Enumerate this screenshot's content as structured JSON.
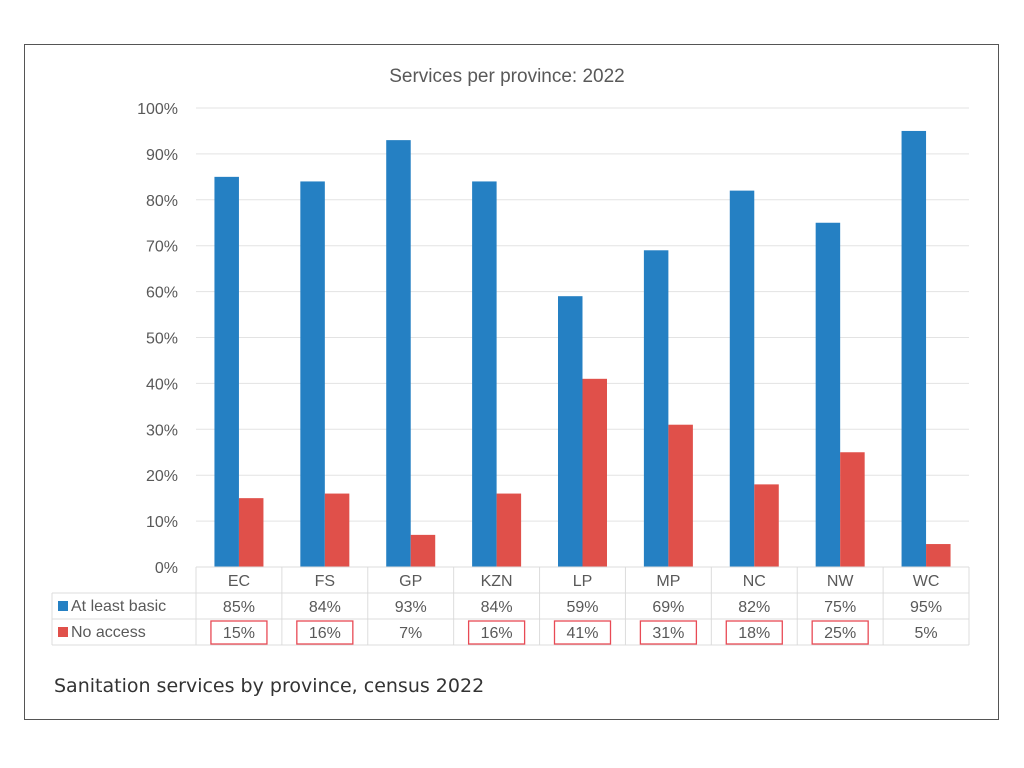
{
  "chart_data": {
    "type": "bar",
    "title": "Services per province: 2022",
    "xlabel": "",
    "ylabel": "",
    "ylim": [
      0,
      100
    ],
    "yticks": [
      "0%",
      "10%",
      "20%",
      "30%",
      "40%",
      "50%",
      "60%",
      "70%",
      "80%",
      "90%",
      "100%"
    ],
    "grid": true,
    "categories": [
      "EC",
      "FS",
      "GP",
      "KZN",
      "LP",
      "MP",
      "NC",
      "NW",
      "WC"
    ],
    "series": [
      {
        "name": "At least basic",
        "color": "#2580c3",
        "values": [
          85,
          84,
          93,
          84,
          59,
          69,
          82,
          75,
          95
        ],
        "labels": [
          "85%",
          "84%",
          "93%",
          "84%",
          "59%",
          "69%",
          "82%",
          "75%",
          "95%"
        ]
      },
      {
        "name": "No access",
        "color": "#e0504a",
        "values": [
          15,
          16,
          7,
          16,
          41,
          31,
          18,
          25,
          5
        ],
        "labels": [
          "15%",
          "16%",
          "7%",
          "16%",
          "41%",
          "31%",
          "18%",
          "25%",
          "5%"
        ]
      }
    ],
    "legend": "data-table-below",
    "highlighted_cells": {
      "series": "No access",
      "categories": [
        "EC",
        "FS",
        "KZN",
        "LP",
        "MP",
        "NC",
        "NW"
      ],
      "highlight_color": "#e84a55"
    }
  },
  "caption": "Sanitation services by province, census 2022"
}
